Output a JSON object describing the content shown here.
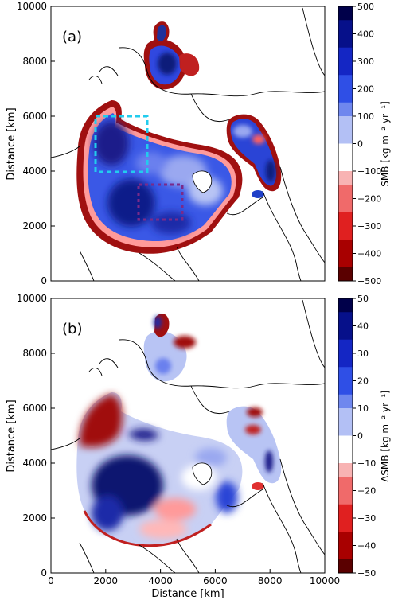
{
  "chart_data": [
    {
      "type": "heatmap",
      "panel_label": "(a)",
      "xlabel": "",
      "ylabel": "Distance [km]",
      "xlim": [
        0,
        10000
      ],
      "ylim": [
        0,
        10000
      ],
      "x_ticks": [
        "0",
        "2000",
        "4000",
        "6000",
        "8000",
        "10000"
      ],
      "y_ticks": [
        "0",
        "2000",
        "4000",
        "6000",
        "8000",
        "10000"
      ],
      "colorbar": {
        "label": "SMB [kg m⁻² yr⁻¹]",
        "range": [
          -500,
          500
        ],
        "ticks": [
          "500",
          "400",
          "300",
          "200",
          "100",
          "0",
          "−100",
          "−200",
          "−300",
          "−400",
          "−500"
        ],
        "colormap": "seismic_r"
      },
      "boxes": [
        {
          "color": "#22ccee",
          "x": [
            1700,
            3600
          ],
          "y": [
            4000,
            6000
          ]
        },
        {
          "color": "#7a2a8a",
          "x": [
            3200,
            4800
          ],
          "y": [
            2200,
            3500
          ]
        }
      ]
    },
    {
      "type": "heatmap",
      "panel_label": "(b)",
      "xlabel": "Distance [km]",
      "ylabel": "Distance [km]",
      "xlim": [
        0,
        10000
      ],
      "ylim": [
        0,
        10000
      ],
      "x_ticks": [
        "0",
        "2000",
        "4000",
        "6000",
        "8000",
        "10000"
      ],
      "y_ticks": [
        "0",
        "2000",
        "4000",
        "6000",
        "8000",
        "10000"
      ],
      "colorbar": {
        "label": "ΔSMB [kg m⁻² yr⁻¹]",
        "range": [
          -50,
          50
        ],
        "ticks": [
          "50",
          "40",
          "30",
          "20",
          "10",
          "0",
          "−10",
          "−20",
          "−30",
          "−40",
          "−50"
        ],
        "colormap": "seismic_r"
      }
    }
  ]
}
